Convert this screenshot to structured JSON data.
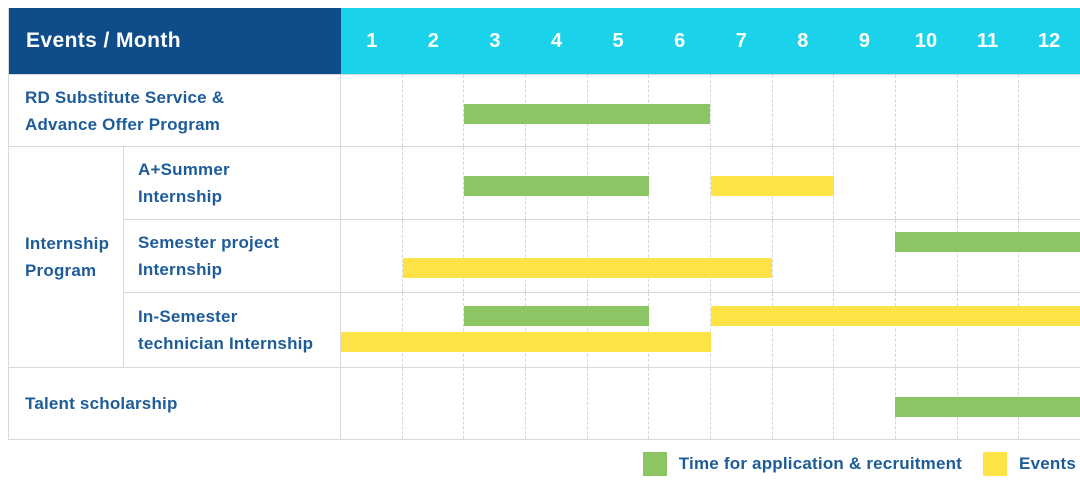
{
  "colors": {
    "header_bg": "#0E4D8A",
    "month_header_bg": "#1AD3EA",
    "text_blue": "#1E5C99",
    "bar_green": "#8CC563",
    "bar_yellow": "#FDE345",
    "border": "#D9D9D9",
    "gridline": "#D6D6D6",
    "page_bg": "#FFFFFF"
  },
  "header": {
    "title": "Events / Month",
    "months": [
      "1",
      "2",
      "3",
      "4",
      "5",
      "6",
      "7",
      "8",
      "9",
      "10",
      "11",
      "12"
    ]
  },
  "legend": {
    "items": [
      {
        "key": "bar_green",
        "label": "Time for application & recruitment"
      },
      {
        "key": "bar_yellow",
        "label": "Events"
      }
    ]
  },
  "chart_data": {
    "type": "bar",
    "subtype": "gantt-timeline",
    "title": "Events / Month",
    "x_axis": {
      "unit": "month",
      "ticks": [
        "1",
        "2",
        "3",
        "4",
        "5",
        "6",
        "7",
        "8",
        "9",
        "10",
        "11",
        "12"
      ],
      "range_months": [
        1,
        12
      ]
    },
    "legend_position": "bottom-right",
    "series": [
      {
        "name": "Time for application & recruitment",
        "color": "#8CC563"
      },
      {
        "name": "Events",
        "color": "#FDE345"
      }
    ],
    "group": {
      "label": "Internship Program",
      "label_lines": [
        "Internship",
        "Program"
      ]
    },
    "rows": [
      {
        "id": "rd-substitute-service",
        "group": "",
        "label": "RD Substitute Service & Advance Offer Program",
        "label_lines": [
          "RD Substitute Service &",
          "Advance Offer Program"
        ],
        "bars": [
          {
            "series": "Time for application & recruitment",
            "color_key": "bar_green",
            "start_month": 3,
            "end_month": 6,
            "lane": "center"
          }
        ]
      },
      {
        "id": "a-plus-summer-internship",
        "group": "Internship Program",
        "label": "A+Summer Internship",
        "label_lines": [
          "A+Summer",
          "Internship"
        ],
        "bars": [
          {
            "series": "Time for application & recruitment",
            "color_key": "bar_green",
            "start_month": 3,
            "end_month": 5,
            "lane": "center"
          },
          {
            "series": "Events",
            "color_key": "bar_yellow",
            "start_month": 7,
            "end_month": 8,
            "lane": "center"
          }
        ]
      },
      {
        "id": "semester-project-internship",
        "group": "Internship Program",
        "label": "Semester project Internship",
        "label_lines": [
          "Semester project",
          "Internship"
        ],
        "bars": [
          {
            "series": "Time for application & recruitment",
            "color_key": "bar_green",
            "start_month": 10,
            "end_month": 12,
            "lane": "top"
          },
          {
            "series": "Events",
            "color_key": "bar_yellow",
            "start_month": 2,
            "end_month": 7,
            "lane": "bottom"
          }
        ]
      },
      {
        "id": "in-semester-technician-internship",
        "group": "Internship Program",
        "label": "In-Semester technician Internship",
        "label_lines": [
          "In-Semester",
          "technician Internship"
        ],
        "bars": [
          {
            "series": "Time for application & recruitment",
            "color_key": "bar_green",
            "start_month": 3,
            "end_month": 5,
            "lane": "top"
          },
          {
            "series": "Events",
            "color_key": "bar_yellow",
            "start_month": 7,
            "end_month": 12,
            "lane": "top"
          },
          {
            "series": "Events",
            "color_key": "bar_yellow",
            "start_month": 1,
            "end_month": 6,
            "lane": "bottom"
          }
        ]
      },
      {
        "id": "talent-scholarship",
        "group": "",
        "label": "Talent scholarship",
        "label_lines": [
          "Talent scholarship"
        ],
        "bars": [
          {
            "series": "Time for application & recruitment",
            "color_key": "bar_green",
            "start_month": 10,
            "end_month": 12,
            "lane": "center"
          }
        ]
      }
    ]
  }
}
